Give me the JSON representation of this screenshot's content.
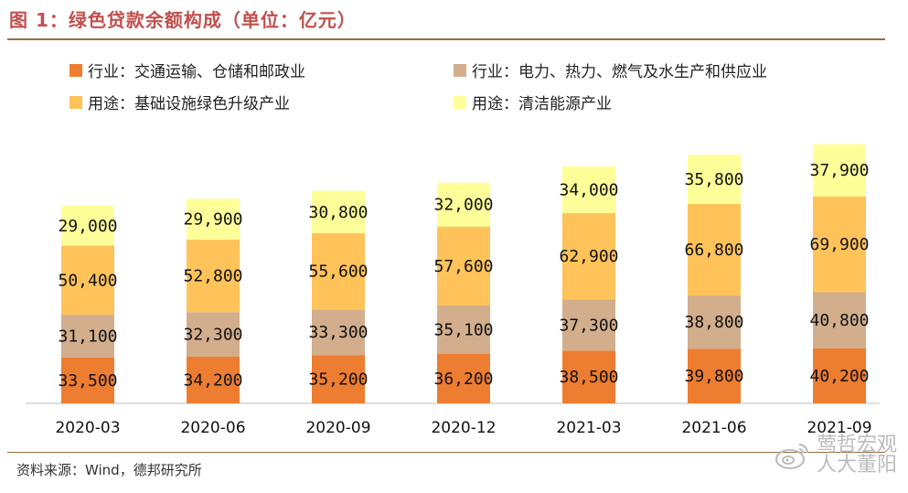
{
  "title": "图 1：绿色贷款余额构成（单位：亿元）",
  "source": "资料来源：Wind，德邦研究所",
  "watermark": {
    "line1": "莺哲宏观",
    "line2": "人大董阳",
    "icon": "weibo-icon"
  },
  "chart_data": {
    "type": "bar",
    "stacked": true,
    "title": "绿色贷款余额构成（单位：亿元）",
    "categories": [
      "2020-03",
      "2020-06",
      "2020-09",
      "2020-12",
      "2021-03",
      "2021-06",
      "2021-09"
    ],
    "series": [
      {
        "name": "行业：交通运输、仓储和邮政业",
        "color": "#ED7D31",
        "values": [
          33500,
          34200,
          35200,
          36200,
          38500,
          39800,
          40200
        ],
        "labels": [
          "33,500",
          "34,200",
          "35,200",
          "36,200",
          "38,500",
          "39,800",
          "40,200"
        ]
      },
      {
        "name": "行业：电力、热力、燃气及水生产和供应业",
        "color": "#D2AE8C",
        "values": [
          31100,
          32300,
          33300,
          35100,
          37300,
          38800,
          40800
        ],
        "labels": [
          "31,100",
          "32,300",
          "33,300",
          "35,100",
          "37,300",
          "38,800",
          "40,800"
        ]
      },
      {
        "name": "用途：基础设施绿色升级产业",
        "color": "#FFC35A",
        "values": [
          50400,
          52800,
          55600,
          57600,
          62900,
          66800,
          69900
        ],
        "labels": [
          "50,400",
          "52,800",
          "55,600",
          "57,600",
          "62,900",
          "66,800",
          "69,900"
        ]
      },
      {
        "name": "用途：清洁能源产业",
        "color": "#FFFF99",
        "values": [
          29000,
          29900,
          30800,
          32000,
          34000,
          35800,
          37900
        ],
        "labels": [
          "29,000",
          "29,900",
          "30,800",
          "32,000",
          "34,000",
          "35,800",
          "37,900"
        ]
      }
    ],
    "ylim": [
      0,
      210000
    ],
    "xlabel": "",
    "ylabel": "",
    "grid": false,
    "legend": "top"
  }
}
